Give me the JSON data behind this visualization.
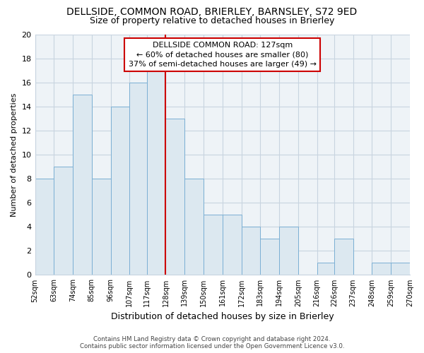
{
  "title": "DELLSIDE, COMMON ROAD, BRIERLEY, BARNSLEY, S72 9ED",
  "subtitle": "Size of property relative to detached houses in Brierley",
  "xlabel": "Distribution of detached houses by size in Brierley",
  "ylabel": "Number of detached properties",
  "bar_color": "#dce8f0",
  "bar_edge_color": "#7bafd4",
  "grid_color": "#c8d4e0",
  "plot_bg_color": "#eef3f7",
  "bins": [
    52,
    63,
    74,
    85,
    96,
    107,
    117,
    128,
    139,
    150,
    161,
    172,
    183,
    194,
    205,
    216,
    226,
    237,
    248,
    259,
    270
  ],
  "bin_labels": [
    "52sqm",
    "63sqm",
    "74sqm",
    "85sqm",
    "96sqm",
    "107sqm",
    "117sqm",
    "128sqm",
    "139sqm",
    "150sqm",
    "161sqm",
    "172sqm",
    "183sqm",
    "194sqm",
    "205sqm",
    "216sqm",
    "226sqm",
    "237sqm",
    "248sqm",
    "259sqm",
    "270sqm"
  ],
  "counts": [
    8,
    9,
    15,
    8,
    14,
    16,
    17,
    13,
    8,
    5,
    5,
    4,
    3,
    4,
    0,
    1,
    3,
    0,
    1,
    1
  ],
  "ylim": [
    0,
    20
  ],
  "yticks": [
    0,
    2,
    4,
    6,
    8,
    10,
    12,
    14,
    16,
    18,
    20
  ],
  "vline_x": 128,
  "vline_color": "#cc0000",
  "annotation_title": "DELLSIDE COMMON ROAD: 127sqm",
  "annotation_line1": "← 60% of detached houses are smaller (80)",
  "annotation_line2": "37% of semi-detached houses are larger (49) →",
  "annotation_box_color": "#ffffff",
  "annotation_box_edge": "#cc0000",
  "footer_line1": "Contains HM Land Registry data © Crown copyright and database right 2024.",
  "footer_line2": "Contains public sector information licensed under the Open Government Licence v3.0.",
  "background_color": "#ffffff",
  "title_fontsize": 10,
  "subtitle_fontsize": 9
}
